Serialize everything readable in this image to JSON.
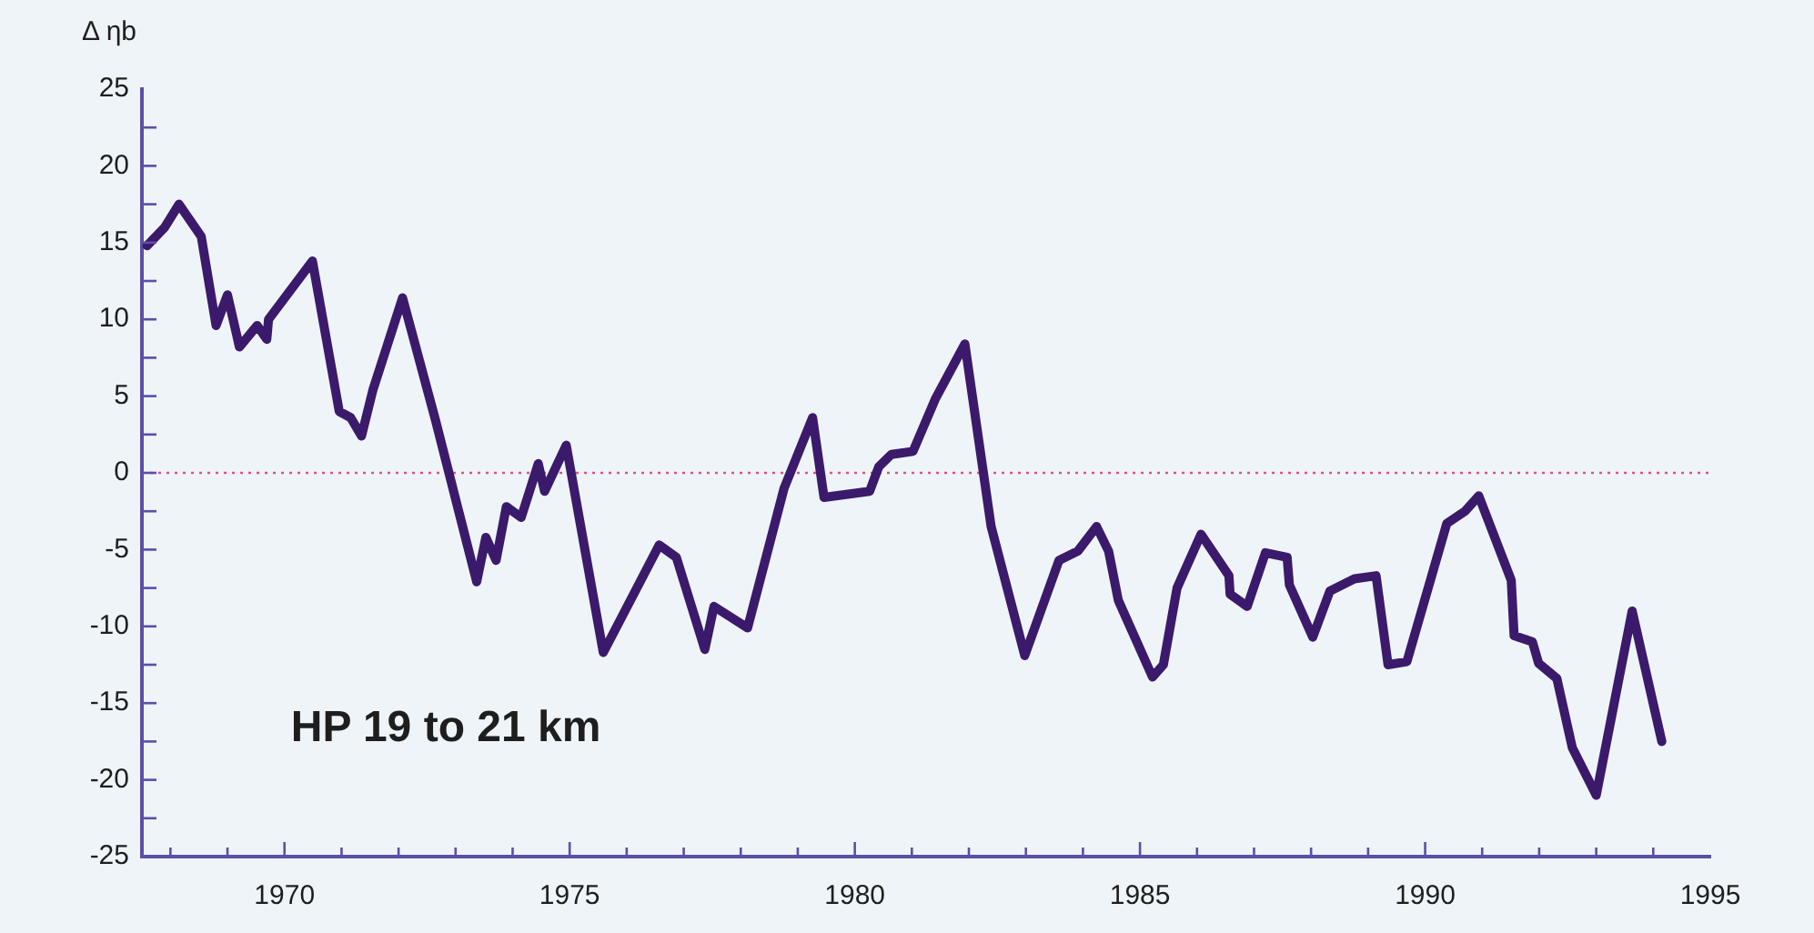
{
  "chart_data": {
    "type": "line",
    "ylabel": "Δ ηb",
    "annotations": [
      "HP 19 to 21 km"
    ],
    "x": [
      1967.59,
      1967.9,
      1968.15,
      1968.54,
      1968.8,
      1969.0,
      1969.21,
      1969.52,
      1969.69,
      1969.72,
      1970.49,
      1970.96,
      1971.16,
      1971.35,
      1971.55,
      1972.07,
      1972.65,
      1973.37,
      1973.53,
      1973.71,
      1973.89,
      1974.15,
      1974.45,
      1974.56,
      1974.94,
      1975.59,
      1976.57,
      1976.87,
      1977.37,
      1977.53,
      1978.12,
      1978.76,
      1979.26,
      1979.46,
      1980.26,
      1980.42,
      1980.64,
      1981.02,
      1981.41,
      1981.93,
      1982.39,
      1982.98,
      1983.58,
      1983.91,
      1984.24,
      1984.45,
      1984.62,
      1985.22,
      1985.41,
      1985.65,
      1986.07,
      1986.56,
      1986.58,
      1986.88,
      1987.2,
      1987.58,
      1987.62,
      1988.03,
      1988.33,
      1988.76,
      1989.14,
      1989.35,
      1989.68,
      1990.38,
      1990.7,
      1990.94,
      1991.51,
      1991.56,
      1991.88,
      1991.99,
      1992.31,
      1992.58,
      1993.0,
      1993.63,
      1994.15
    ],
    "series": [
      {
        "color": "#3b1a6b",
        "values": [
          14.8,
          16.0,
          17.5,
          15.4,
          9.6,
          11.6,
          8.2,
          9.6,
          8.7,
          10.0,
          13.8,
          4.0,
          3.6,
          2.4,
          5.4,
          11.4,
          3.4,
          -7.1,
          -4.2,
          -5.7,
          -2.2,
          -2.9,
          0.6,
          -1.2,
          1.8,
          -11.7,
          -4.7,
          -5.5,
          -11.5,
          -8.7,
          -10.1,
          -1.0,
          3.6,
          -1.6,
          -1.2,
          0.4,
          1.2,
          1.4,
          4.8,
          8.4,
          -3.5,
          -11.9,
          -5.7,
          -5.1,
          -3.5,
          -5.1,
          -8.3,
          -13.3,
          -12.5,
          -7.5,
          -4.0,
          -6.7,
          -7.9,
          -8.7,
          -5.2,
          -5.5,
          -7.3,
          -10.7,
          -7.7,
          -6.9,
          -6.7,
          -12.5,
          -12.3,
          -3.3,
          -2.5,
          -1.5,
          -7.0,
          -10.6,
          -11.0,
          -12.4,
          -13.4,
          -17.9,
          -21.0,
          -9.0,
          -17.5
        ]
      }
    ],
    "xlim": [
      1967.5,
      1995
    ],
    "xticks": [
      {
        "value": 1968,
        "label": null
      },
      {
        "value": 1969,
        "label": null
      },
      1970,
      {
        "value": 1971,
        "label": null
      },
      {
        "value": 1972,
        "label": null
      },
      {
        "value": 1973,
        "label": null
      },
      {
        "value": 1974,
        "label": null
      },
      1975,
      {
        "value": 1976,
        "label": null
      },
      {
        "value": 1977,
        "label": null
      },
      {
        "value": 1978,
        "label": null
      },
      {
        "value": 1979,
        "label": null
      },
      1980,
      {
        "value": 1981,
        "label": null
      },
      {
        "value": 1982,
        "label": null
      },
      {
        "value": 1983,
        "label": null
      },
      {
        "value": 1984,
        "label": null
      },
      1985,
      {
        "value": 1986,
        "label": null
      },
      {
        "value": 1987,
        "label": null
      },
      {
        "value": 1988,
        "label": null
      },
      {
        "value": 1989,
        "label": null
      },
      1990,
      {
        "value": 1991,
        "label": null
      },
      {
        "value": 1992,
        "label": null
      },
      {
        "value": 1993,
        "label": null
      },
      {
        "value": 1994,
        "label": null
      },
      1995
    ],
    "ylim": [
      -25,
      25
    ],
    "yticks": [
      -25,
      {
        "value": -22.5,
        "label": null
      },
      -20,
      {
        "value": -17.5,
        "label": null
      },
      -15,
      {
        "value": -12.5,
        "label": null
      },
      -10,
      {
        "value": -7.5,
        "label": null
      },
      -5,
      {
        "value": -2.5,
        "label": null
      },
      0,
      {
        "value": 2.5,
        "label": null
      },
      5,
      {
        "value": 7.5,
        "label": null
      },
      10,
      {
        "value": 12.5,
        "label": null
      },
      15,
      {
        "value": 17.5,
        "label": null
      },
      20,
      {
        "value": 22.5,
        "label": null
      },
      25
    ],
    "ref_lines": [
      {
        "axis": "y",
        "value": 0,
        "color": "#e8507a",
        "line_style": "dotted"
      }
    ],
    "marker": "none",
    "line_style": "solid"
  }
}
